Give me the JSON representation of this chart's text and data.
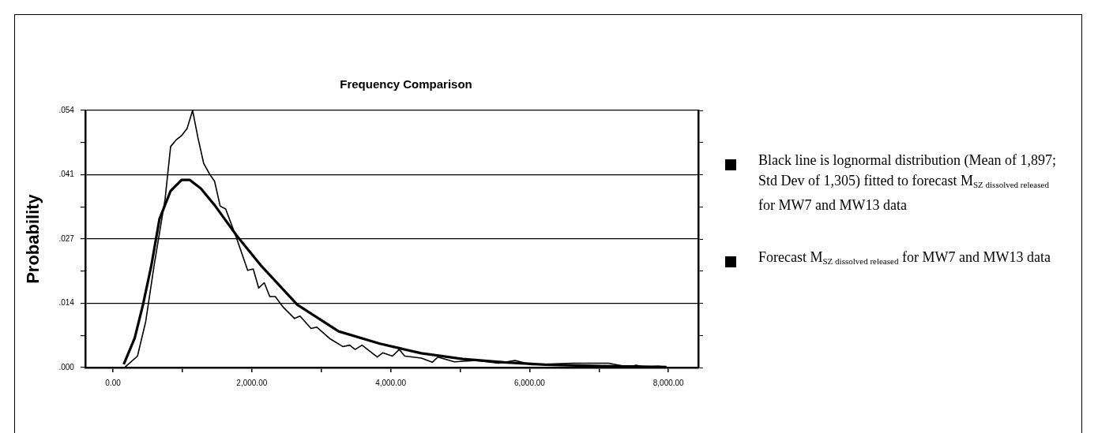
{
  "chart_data": {
    "type": "line",
    "title": "Frequency Comparison",
    "ylabel": "Probability",
    "xlim": [
      -400,
      8430
    ],
    "ylim": [
      0,
      0.054
    ],
    "xticks": [
      {
        "value": 0,
        "label": "0.00"
      },
      {
        "value": 1000,
        "label": null
      },
      {
        "value": 2000,
        "label": "2,000.00"
      },
      {
        "value": 3000,
        "label": null
      },
      {
        "value": 4000,
        "label": "4,000.00"
      },
      {
        "value": 5000,
        "label": null
      },
      {
        "value": 6000,
        "label": "6,000.00"
      },
      {
        "value": 7000,
        "label": null
      },
      {
        "value": 8000,
        "label": "8,000.00"
      }
    ],
    "yticks": [
      {
        "value": 0,
        "label": ".000"
      },
      {
        "value": 0.00675,
        "label": null
      },
      {
        "value": 0.0135,
        "label": ".014"
      },
      {
        "value": 0.02025,
        "label": null
      },
      {
        "value": 0.027,
        "label": ".027"
      },
      {
        "value": 0.03375,
        "label": null
      },
      {
        "value": 0.0405,
        "label": ".041"
      },
      {
        "value": 0.04725,
        "label": null
      },
      {
        "value": 0.054,
        "label": ".054"
      }
    ],
    "grid": "y",
    "legend": "right",
    "marker": "none",
    "series": [
      {
        "name": "Black line is lognormal distribution (Mean of 1,897; Std Dev of 1,305) fitted to forecast M$_{SZ dissolved released}$ for MW7 and MW13 data",
        "color": "#000000",
        "x": [
          155,
          313,
          432,
          551,
          670,
          830,
          988,
          1107,
          1266,
          1464,
          1782,
          2139,
          2655,
          3250,
          3845,
          4440,
          5036,
          5631,
          6226,
          7020,
          7972
        ],
        "values": [
          0.0007,
          0.0062,
          0.0132,
          0.0213,
          0.0312,
          0.0371,
          0.0394,
          0.0394,
          0.0376,
          0.0341,
          0.0277,
          0.0213,
          0.0132,
          0.0076,
          0.005,
          0.003,
          0.0018,
          0.0011,
          0.0006,
          0.0003,
          0.0001
        ]
      },
      {
        "name": "Forecast M$_{SZ dissolved released}$ for MW7 and MW13 data",
        "color": "#000000",
        "x": [
          175,
          353,
          472,
          591,
          750,
          830,
          909,
          988,
          1067,
          1147,
          1226,
          1306,
          1385,
          1464,
          1544,
          1623,
          1782,
          1940,
          2020,
          2099,
          2179,
          2258,
          2337,
          2456,
          2615,
          2694,
          2853,
          2933,
          3131,
          3310,
          3409,
          3488,
          3587,
          3806,
          3885,
          4024,
          4123,
          4202,
          4440,
          4599,
          4679,
          4917,
          5234,
          5552,
          5790,
          6028,
          6623,
          7139,
          7417,
          7536,
          7655,
          7853,
          7972
        ],
        "values": [
          0.0001,
          0.0024,
          0.0097,
          0.0213,
          0.0353,
          0.0464,
          0.0478,
          0.0487,
          0.0502,
          0.054,
          0.0481,
          0.0429,
          0.0408,
          0.0391,
          0.0339,
          0.0333,
          0.0271,
          0.0204,
          0.0207,
          0.0167,
          0.0178,
          0.0149,
          0.0149,
          0.0126,
          0.0103,
          0.0108,
          0.0082,
          0.0085,
          0.006,
          0.0044,
          0.0047,
          0.0038,
          0.0047,
          0.0022,
          0.0031,
          0.0024,
          0.0038,
          0.0024,
          0.002,
          0.0011,
          0.0022,
          0.0012,
          0.0015,
          0.0009,
          0.0015,
          0.0006,
          0.0009,
          0.0009,
          0.0001,
          0.0005,
          0.0001,
          0.0003,
          0.0001
        ]
      }
    ]
  }
}
